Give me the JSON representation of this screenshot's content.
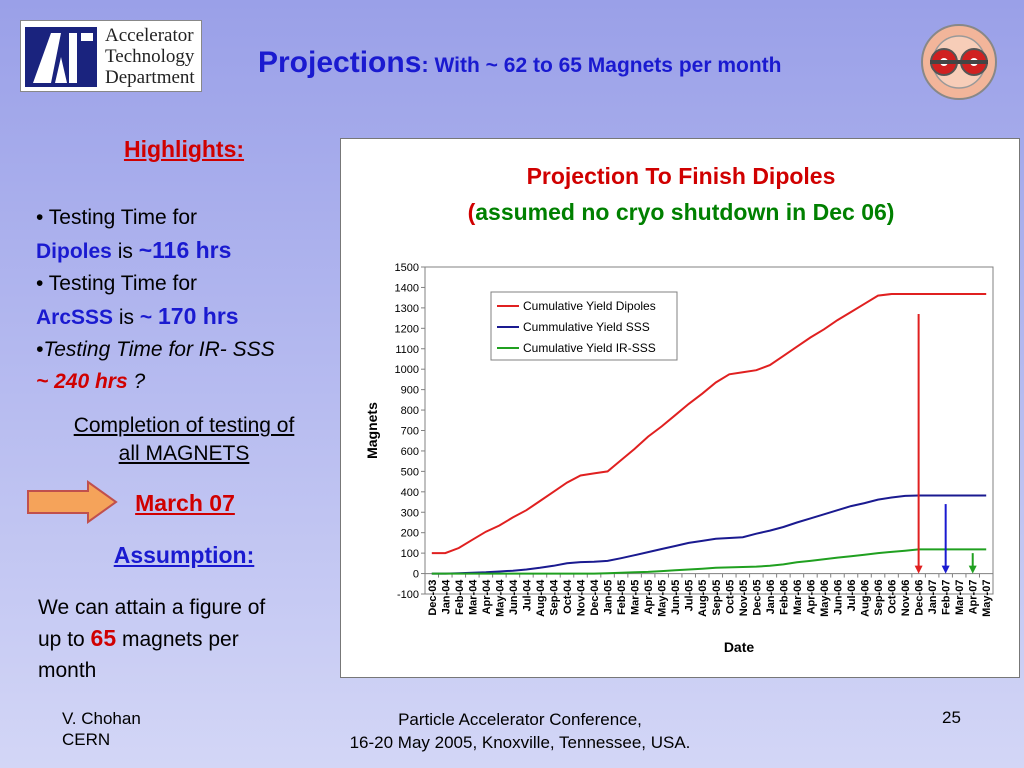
{
  "header": {
    "logo_lines": [
      "Accelerator",
      "Technology",
      "Department"
    ],
    "title_main": "Projections",
    "title_colon": ":",
    "title_sub": " With ~ 62 to 65 Magnets per month"
  },
  "left_panel": {
    "highlights": "Highlights:",
    "b1_prefix": "• Testing Time for",
    "b1_name": "Dipoles",
    "b1_is": " is ",
    "b1_value": "~116 hrs",
    "b2_prefix": "• Testing Time for",
    "b2_name": "ArcSSS",
    "b2_is": " is ",
    "b2_tilde": "~ ",
    "b2_value": "170 hrs",
    "b3_text": "•Testing Time for IR- SSS",
    "b3_value": "~ 240 hrs",
    "b3_q": " ?",
    "completion_line1": "Completion of testing of",
    "completion_line2": "all MAGNETS",
    "march": "March 07",
    "assumption": "Assumption:",
    "assume_line1": "We can attain a figure of",
    "assume_line2a": "up to ",
    "assume_65": "65",
    "assume_line2b": " magnets per",
    "assume_line3": "month"
  },
  "chart_data": {
    "type": "line",
    "title": "Projection To Finish Dipoles",
    "subtitle_open": "(",
    "subtitle": "assumed no cryo shutdown in Dec 06)",
    "xlabel": "Date",
    "ylabel": "Magnets",
    "ylim": [
      -100,
      1500
    ],
    "yticks": [
      -100,
      0,
      100,
      200,
      300,
      400,
      500,
      600,
      700,
      800,
      900,
      1000,
      1100,
      1200,
      1300,
      1400,
      1500
    ],
    "grid": false,
    "legend_position": "top-left",
    "categories": [
      "Dec-03",
      "Jan-04",
      "Feb-04",
      "Mar-04",
      "Apr-04",
      "May-04",
      "Jun-04",
      "Jul-04",
      "Aug-04",
      "Sep-04",
      "Oct-04",
      "Nov-04",
      "Dec-04",
      "Jan-05",
      "Feb-05",
      "Mar-05",
      "Apr-05",
      "May-05",
      "Jun-05",
      "Jul-05",
      "Aug-05",
      "Sep-05",
      "Oct-05",
      "Nov-05",
      "Dec-05",
      "Jan-06",
      "Feb-06",
      "Mar-06",
      "Apr-06",
      "May-06",
      "Jun-06",
      "Jul-06",
      "Aug-06",
      "Sep-06",
      "Oct-06",
      "Nov-06",
      "Dec-06",
      "Jan-07",
      "Feb-07",
      "Mar-07",
      "Apr-07",
      "May-07"
    ],
    "series": [
      {
        "name": "Cumulative Yield Dipoles",
        "color": "#e02020",
        "values": [
          100,
          100,
          125,
          165,
          205,
          235,
          275,
          310,
          355,
          400,
          445,
          480,
          490,
          500,
          555,
          610,
          670,
          720,
          775,
          830,
          880,
          935,
          975,
          985,
          995,
          1020,
          1065,
          1110,
          1155,
          1195,
          1240,
          1280,
          1320,
          1360,
          1368,
          1368,
          1368,
          1368,
          1368,
          1368,
          1368,
          1368
        ]
      },
      {
        "name": "Cummulative Yield SSS",
        "color": "#1a1a90",
        "values": [
          0,
          0,
          2,
          4,
          6,
          10,
          14,
          20,
          28,
          38,
          50,
          56,
          58,
          62,
          75,
          90,
          105,
          120,
          135,
          150,
          160,
          170,
          174,
          178,
          195,
          210,
          228,
          250,
          270,
          290,
          310,
          330,
          345,
          362,
          372,
          380,
          382,
          382,
          382,
          382,
          382,
          382
        ]
      },
      {
        "name": "Cumulative Yield IR-SSS",
        "color": "#20a020",
        "values": [
          0,
          0,
          0,
          0,
          0,
          0,
          0,
          0,
          0,
          0,
          0,
          0,
          0,
          2,
          4,
          6,
          8,
          12,
          16,
          20,
          24,
          28,
          30,
          32,
          34,
          38,
          45,
          55,
          62,
          70,
          78,
          85,
          92,
          100,
          106,
          112,
          118,
          118,
          118,
          118,
          118,
          118
        ]
      }
    ],
    "markers": [
      {
        "category": "Dec-06",
        "color": "#e02020",
        "from": 1270,
        "to": 0
      },
      {
        "category": "Feb-07",
        "color": "#1a1ad0",
        "from": 340,
        "to": 0
      },
      {
        "category": "Apr-07",
        "color": "#20a020",
        "from": 100,
        "to": 0
      }
    ]
  },
  "footer": {
    "author": "V. Chohan",
    "org": "CERN",
    "conf_line1": "Particle Accelerator Conference,",
    "conf_line2": "16-20 May 2005, Knoxville, Tennessee, USA.",
    "page": "25"
  }
}
